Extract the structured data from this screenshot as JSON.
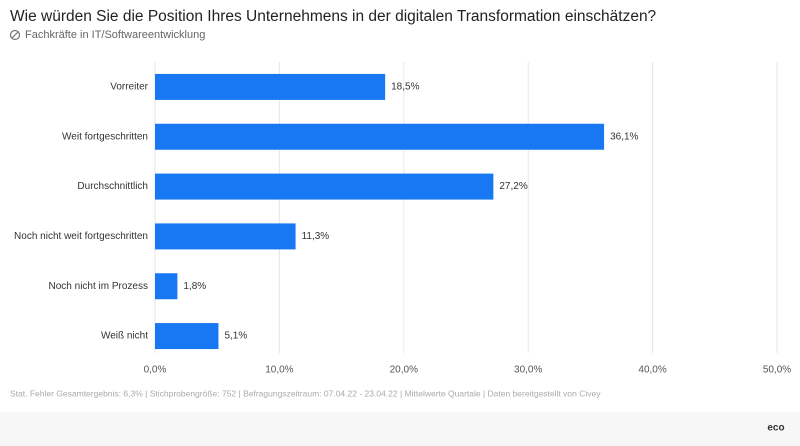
{
  "chart_data": {
    "type": "bar",
    "orientation": "horizontal",
    "title": "Wie würden Sie die Position Ihres Unternehmens in der digitalen Transformation einschätzen?",
    "subtitle": "Fachkräfte in IT/Softwareentwicklung",
    "categories": [
      "Vorreiter",
      "Weit fortgeschritten",
      "Durchschnittlich",
      "Noch nicht weit fortgeschritten",
      "Noch nicht im Prozess",
      "Weiß nicht"
    ],
    "values": [
      18.5,
      36.1,
      27.2,
      11.3,
      1.8,
      5.1
    ],
    "value_labels": [
      "18,5%",
      "36,1%",
      "27,2%",
      "11,3%",
      "1,8%",
      "5,1%"
    ],
    "color": "#1877f2",
    "xlim": [
      0,
      50
    ],
    "xticks": [
      {
        "value": 0,
        "label": "0,0%"
      },
      {
        "value": 10,
        "label": "10,0%"
      },
      {
        "value": 20,
        "label": "20,0%"
      },
      {
        "value": 30,
        "label": "30,0%"
      },
      {
        "value": 40,
        "label": "40,0%"
      },
      {
        "value": 50,
        "label": "50,0%"
      }
    ],
    "grid": true,
    "note": "Stat. Fehler Gesamtergebnis: 6,3% | Stichprobengröße: 752 | Befragungszeitraum: 07.04.22 - 23.04.22 | Mittelwerte Quartale | Daten bereitgestellt von Civey",
    "logo": "eco"
  }
}
